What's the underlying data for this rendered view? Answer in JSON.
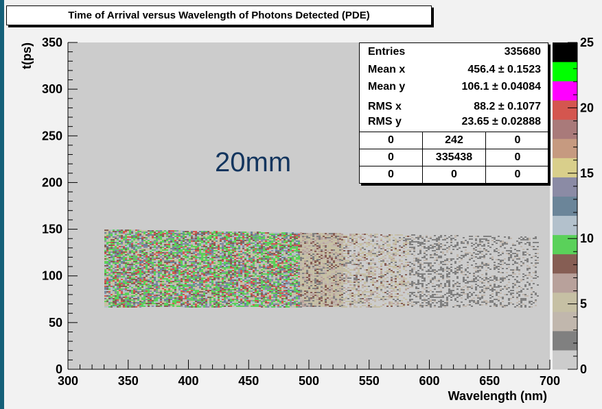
{
  "chart_data": {
    "type": "heatmap",
    "title": "Time of Arrival versus Wavelength of Photons Detected (PDE)",
    "xlabel": "Wavelength (nm)",
    "ylabel": "t(ps)",
    "xlim": [
      300,
      700
    ],
    "ylim": [
      0,
      350
    ],
    "x_ticks": [
      "300",
      "350",
      "400",
      "450",
      "500",
      "550",
      "600",
      "650",
      "700"
    ],
    "y_ticks": [
      "0",
      "50",
      "100",
      "150",
      "200",
      "250",
      "300",
      "350"
    ],
    "z_range": [
      0,
      25
    ],
    "z_ticks": [
      "0",
      "5",
      "10",
      "15",
      "20",
      "25"
    ],
    "palette": [
      "#cccccc",
      "#808080",
      "#c1b7ad",
      "#c6c0a4",
      "#b8a19b",
      "#865e54",
      "#5ad15a",
      "#b3c1cc",
      "#6b8599",
      "#8b8ba5",
      "#d9cf8b",
      "#c69a80",
      "#a97a7a",
      "#d4564f",
      "#ff00ff",
      "#00ff00",
      "#000000"
    ],
    "region": {
      "x": [
        330,
        690
      ],
      "y_bottom": 67,
      "y_top_start": 150,
      "y_top_end": 142
    },
    "annotation": "20mm",
    "stats": {
      "entries_label": "Entries",
      "entries": "335680",
      "mean_x_label": "Mean x",
      "mean_x": "456.4 ± 0.1523",
      "mean_y_label": "Mean y",
      "mean_y": "106.1 ± 0.04084",
      "rms_x_label": "RMS x",
      "rms_x": "88.2 ± 0.1077",
      "rms_y_label": "RMS y",
      "rms_y": "23.65 ± 0.02888",
      "cells": [
        [
          "0",
          "242",
          "0"
        ],
        [
          "0",
          "335438",
          "0"
        ],
        [
          "0",
          "0",
          "0"
        ]
      ]
    }
  }
}
